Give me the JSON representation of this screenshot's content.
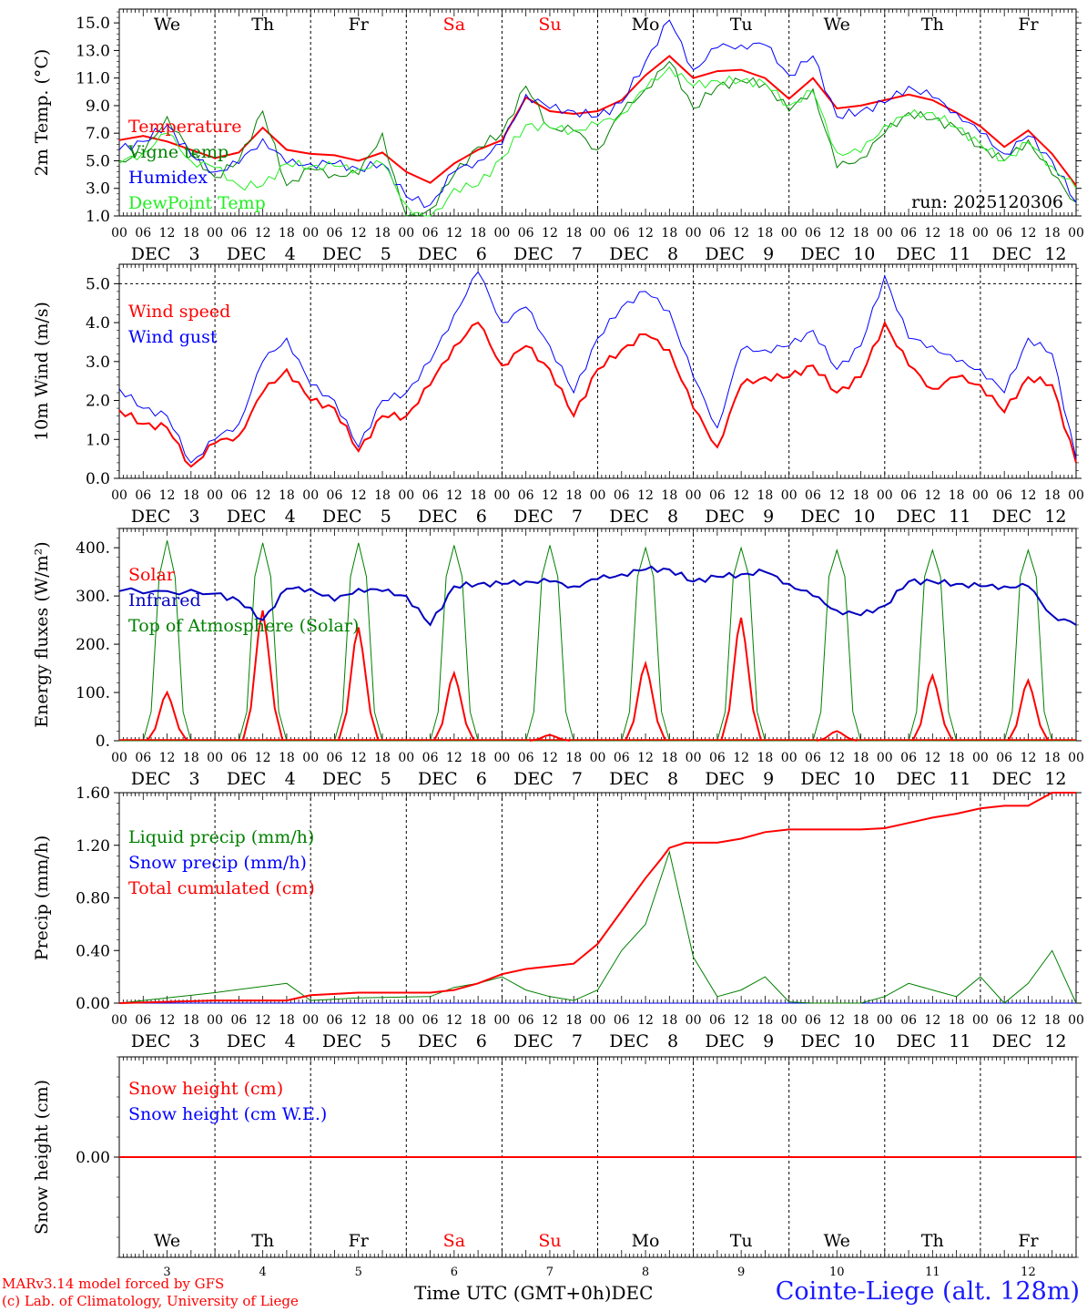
{
  "colors": {
    "red": "#ff0000",
    "blue": "#0000ff",
    "green": "#008000",
    "lightgreen": "#22ee22",
    "darkblue": "#0000c0"
  },
  "footer": {
    "model": "MARv3.14 model forced by GFS",
    "copyright": "(c) Lab. of Climatology, University of Liege",
    "axis_label": "Time UTC (GMT+0h)DEC",
    "station": "Cointe-Liege (alt. 128m)"
  },
  "chart_data": {
    "type": "line",
    "time": {
      "start_day": 3,
      "days": 10,
      "unit": "hours",
      "step": 6
    },
    "hour_labels": [
      "00",
      "06",
      "12",
      "18"
    ],
    "month": "DEC",
    "date_labels": [
      "3",
      "4",
      "5",
      "6",
      "7",
      "8",
      "9",
      "10",
      "11",
      "12"
    ],
    "weekdays": [
      "We",
      "Th",
      "Fr",
      "Sa",
      "Su",
      "Mo",
      "Tu",
      "We",
      "Th",
      "Fr"
    ],
    "weekday_colors": [
      "#000000",
      "#000000",
      "#000000",
      "#ff0000",
      "#ff0000",
      "#000000",
      "#000000",
      "#000000",
      "#000000",
      "#000000"
    ],
    "panels": [
      {
        "id": "temp",
        "ylabel": "2m Temp. (°C)",
        "ylim": [
          1,
          16
        ],
        "yticks": [
          "1.0",
          "3.0",
          "5.0",
          "7.0",
          "9.0",
          "11.0",
          "13.0",
          "15.0"
        ],
        "ytick_values": [
          1,
          3,
          5,
          7,
          9,
          11,
          13,
          15
        ],
        "run_label": "run: 2025120306",
        "series": [
          {
            "name": "Temperature",
            "color": "#ff0000",
            "width": 2,
            "x": [
              0,
              6,
              12,
              18,
              24,
              30,
              36,
              42,
              48,
              54,
              60,
              66,
              72,
              78,
              84,
              90,
              96,
              102,
              108,
              114,
              120,
              126,
              132,
              138,
              144,
              150,
              156,
              162,
              168,
              174,
              180,
              186,
              192,
              198,
              204,
              210,
              216,
              222,
              228,
              234,
              240
            ],
            "y": [
              6.5,
              6.8,
              6.4,
              5.8,
              5.2,
              5.6,
              7.4,
              5.8,
              5.5,
              5.4,
              5.0,
              5.6,
              4.2,
              3.4,
              4.8,
              5.8,
              6.5,
              9.6,
              8.6,
              8.4,
              8.6,
              9.4,
              11.2,
              12.6,
              11.0,
              11.5,
              11.6,
              11.0,
              9.5,
              11.0,
              8.8,
              9.0,
              9.4,
              9.8,
              9.4,
              8.5,
              7.5,
              6.0,
              7.2,
              5.5,
              3.2
            ]
          },
          {
            "name": "Vigne temp",
            "color": "#008000",
            "width": 1,
            "x": [
              0,
              6,
              12,
              18,
              24,
              30,
              36,
              42,
              48,
              54,
              60,
              66,
              72,
              78,
              84,
              90,
              96,
              102,
              108,
              114,
              120,
              126,
              132,
              138,
              144,
              150,
              156,
              162,
              168,
              174,
              180,
              186,
              192,
              198,
              204,
              210,
              216,
              222,
              228,
              234,
              240
            ],
            "y": [
              5.0,
              5.5,
              8.2,
              5.5,
              3.8,
              5.0,
              8.6,
              3.2,
              4.4,
              4.0,
              4.0,
              7.0,
              0.5,
              1.5,
              4.0,
              6.0,
              7.0,
              10.4,
              7.4,
              7.2,
              5.8,
              8.5,
              10.2,
              12.2,
              8.8,
              10.4,
              10.8,
              10.6,
              8.6,
              10.2,
              4.5,
              5.2,
              7.0,
              8.5,
              8.0,
              7.4,
              6.0,
              5.0,
              6.5,
              4.0,
              2.0
            ]
          },
          {
            "name": "Humidex",
            "color": "#0000ff",
            "width": 1,
            "x": [
              0,
              6,
              12,
              18,
              24,
              30,
              36,
              42,
              48,
              54,
              60,
              66,
              72,
              78,
              84,
              90,
              96,
              102,
              108,
              114,
              120,
              126,
              132,
              138,
              144,
              150,
              156,
              162,
              168,
              174,
              180,
              186,
              192,
              198,
              204,
              210,
              216,
              222,
              228,
              234,
              240
            ],
            "y": [
              5.8,
              6.4,
              7.6,
              5.4,
              4.2,
              4.8,
              6.6,
              4.8,
              4.8,
              4.8,
              4.4,
              4.8,
              2.4,
              1.8,
              4.2,
              5.0,
              6.2,
              9.8,
              8.8,
              8.6,
              8.2,
              9.2,
              12.2,
              15.2,
              11.6,
              13.2,
              13.4,
              13.4,
              11.2,
              12.6,
              8.2,
              8.6,
              9.2,
              10.4,
              9.6,
              8.5,
              7.0,
              5.5,
              6.8,
              5.0,
              2.0
            ]
          },
          {
            "name": "DewPoint Temp",
            "color": "#22ee22",
            "width": 1,
            "x": [
              0,
              6,
              12,
              18,
              24,
              30,
              36,
              42,
              48,
              54,
              60,
              66,
              72,
              78,
              84,
              90,
              96,
              102,
              108,
              114,
              120,
              126,
              132,
              138,
              144,
              150,
              156,
              162,
              168,
              174,
              180,
              186,
              192,
              198,
              204,
              210,
              216,
              222,
              228,
              234,
              240
            ],
            "y": [
              4.8,
              5.6,
              7.0,
              5.0,
              4.5,
              3.2,
              3.2,
              4.8,
              4.6,
              4.6,
              4.4,
              4.8,
              1.8,
              0.5,
              3.0,
              3.2,
              5.2,
              7.6,
              7.4,
              7.2,
              7.6,
              8.4,
              10.2,
              11.8,
              10.4,
              10.8,
              10.8,
              10.6,
              9.0,
              10.0,
              5.6,
              5.6,
              7.6,
              8.3,
              8.5,
              7.4,
              6.2,
              5.0,
              6.3,
              4.6,
              3.0
            ]
          }
        ]
      },
      {
        "id": "wind",
        "ylabel": "10m Wind (m/s)",
        "ylim": [
          0,
          5.5
        ],
        "yticks": [
          "0.0",
          "1.0",
          "2.0",
          "3.0",
          "4.0",
          "5.0"
        ],
        "ytick_values": [
          0,
          1,
          2,
          3,
          4,
          5
        ],
        "ref_line": 5.0,
        "series": [
          {
            "name": "Wind speed",
            "color": "#ff0000",
            "width": 2,
            "x": [
              0,
              6,
              12,
              18,
              24,
              30,
              36,
              42,
              48,
              54,
              60,
              66,
              72,
              78,
              84,
              90,
              96,
              102,
              108,
              114,
              120,
              126,
              132,
              138,
              144,
              150,
              156,
              162,
              168,
              174,
              180,
              186,
              192,
              198,
              204,
              210,
              216,
              222,
              228,
              234,
              240
            ],
            "y": [
              1.75,
              1.4,
              1.3,
              0.3,
              0.9,
              1.1,
              2.2,
              2.8,
              2.0,
              1.8,
              0.7,
              1.6,
              1.6,
              2.4,
              3.4,
              4.0,
              2.9,
              3.4,
              2.8,
              1.6,
              2.8,
              3.3,
              3.7,
              3.3,
              1.8,
              0.8,
              2.4,
              2.6,
              2.6,
              2.9,
              2.2,
              2.6,
              4.0,
              2.9,
              2.3,
              2.6,
              2.4,
              1.7,
              2.6,
              2.4,
              0.4
            ]
          },
          {
            "name": "Wind gust",
            "color": "#0000ff",
            "width": 1,
            "x": [
              0,
              6,
              12,
              18,
              24,
              30,
              36,
              42,
              48,
              54,
              60,
              66,
              72,
              78,
              84,
              90,
              96,
              102,
              108,
              114,
              120,
              126,
              132,
              138,
              144,
              150,
              156,
              162,
              168,
              174,
              180,
              186,
              192,
              198,
              204,
              210,
              216,
              222,
              228,
              234,
              240
            ],
            "y": [
              2.3,
              1.8,
              1.6,
              0.4,
              1.0,
              1.4,
              3.0,
              3.6,
              2.4,
              2.0,
              0.8,
              2.0,
              2.2,
              3.0,
              4.2,
              5.3,
              4.0,
              4.4,
              3.4,
              2.2,
              3.6,
              4.4,
              4.8,
              4.3,
              2.6,
              1.3,
              3.3,
              3.3,
              3.4,
              3.8,
              2.8,
              3.4,
              5.2,
              3.6,
              3.4,
              3.0,
              2.8,
              2.2,
              3.6,
              3.2,
              0.5
            ]
          }
        ]
      },
      {
        "id": "energy",
        "ylabel": "Energy fluxes (W/m²)",
        "ylim": [
          0,
          440
        ],
        "yticks": [
          "0.",
          "100.",
          "200.",
          "300.",
          "400."
        ],
        "ytick_values": [
          0,
          100,
          200,
          300,
          400
        ],
        "series": [
          {
            "name": "Solar",
            "color": "#ff0000",
            "width": 2,
            "peaks": [
              100,
              270,
              235,
              140,
              12,
              160,
              255,
              20,
              135,
              125
            ]
          },
          {
            "name": "Infrared",
            "color": "#0000c0",
            "width": 2,
            "x": [
              0,
              12,
              24,
              30,
              36,
              42,
              48,
              54,
              60,
              66,
              72,
              78,
              84,
              90,
              96,
              102,
              108,
              114,
              120,
              126,
              132,
              138,
              144,
              150,
              156,
              162,
              168,
              174,
              180,
              186,
              192,
              198,
              204,
              210,
              216,
              222,
              228,
              234,
              240
            ],
            "y": [
              310,
              310,
              305,
              290,
              250,
              315,
              315,
              290,
              315,
              310,
              300,
              240,
              320,
              325,
              325,
              330,
              330,
              320,
              335,
              345,
              355,
              355,
              330,
              340,
              345,
              350,
              325,
              300,
              270,
              260,
              280,
              330,
              330,
              325,
              320,
              320,
              320,
              260,
              240
            ]
          },
          {
            "name": "Top of Atmosphere (Solar)",
            "color": "#008000",
            "width": 1,
            "peaks": [
              415,
              410,
              410,
              405,
              405,
              400,
              400,
              395,
              395,
              395
            ]
          }
        ]
      },
      {
        "id": "precip",
        "ylabel": "Precip (mm/h)",
        "ylim": [
          0,
          1.6
        ],
        "yticks": [
          "0.00",
          "0.40",
          "0.80",
          "1.20",
          "1.60"
        ],
        "ytick_values": [
          0,
          0.4,
          0.8,
          1.2,
          1.6
        ],
        "series": [
          {
            "name": "Liquid precip (mm/h)",
            "color": "#008000",
            "width": 1,
            "x": [
              0,
              24,
              42,
              48,
              60,
              78,
              84,
              90,
              96,
              102,
              108,
              114,
              120,
              126,
              132,
              138,
              144,
              150,
              156,
              162,
              168,
              174,
              180,
              186,
              192,
              198,
              204,
              210,
              216,
              222,
              228,
              234,
              240
            ],
            "y": [
              0,
              0.08,
              0.15,
              0.02,
              0.04,
              0.05,
              0.12,
              0.15,
              0.2,
              0.1,
              0.05,
              0.02,
              0.1,
              0.4,
              0.6,
              1.15,
              0.35,
              0.05,
              0.1,
              0.2,
              0.01,
              0,
              0,
              0,
              0.05,
              0.15,
              0.1,
              0.05,
              0.2,
              0,
              0.15,
              0.4,
              0
            ]
          },
          {
            "name": "Snow precip (mm/h)",
            "color": "#0000ff",
            "width": 1,
            "x": [
              0,
              240
            ],
            "y": [
              0,
              0
            ]
          },
          {
            "name": "Total cumulated (cm)",
            "color": "#ff0000",
            "width": 2,
            "x": [
              0,
              24,
              42,
              48,
              60,
              72,
              78,
              84,
              90,
              96,
              102,
              108,
              114,
              120,
              126,
              132,
              136,
              138,
              142,
              150,
              156,
              162,
              168,
              174,
              180,
              186,
              192,
              198,
              204,
              210,
              216,
              222,
              228,
              234,
              240
            ],
            "y": [
              0,
              0.02,
              0.02,
              0.06,
              0.08,
              0.08,
              0.08,
              0.1,
              0.15,
              0.22,
              0.26,
              0.28,
              0.3,
              0.45,
              0.7,
              0.95,
              1.1,
              1.18,
              1.22,
              1.22,
              1.25,
              1.3,
              1.32,
              1.32,
              1.32,
              1.32,
              1.33,
              1.37,
              1.41,
              1.44,
              1.48,
              1.5,
              1.5,
              1.6,
              1.6
            ]
          }
        ]
      },
      {
        "id": "snow",
        "ylabel": "Snow height (cm)",
        "ylim": [
          -1,
          1
        ],
        "yticks": [
          "0.00"
        ],
        "ytick_values": [
          0
        ],
        "series": [
          {
            "name": "Snow height (cm)",
            "color": "#ff0000",
            "width": 2,
            "x": [
              0,
              240
            ],
            "y": [
              0,
              0
            ]
          },
          {
            "name": "Snow height (cm W.E.)",
            "color": "#0000ff",
            "width": 1,
            "x": [
              0,
              240
            ],
            "y": [
              0,
              0
            ]
          }
        ]
      }
    ]
  }
}
